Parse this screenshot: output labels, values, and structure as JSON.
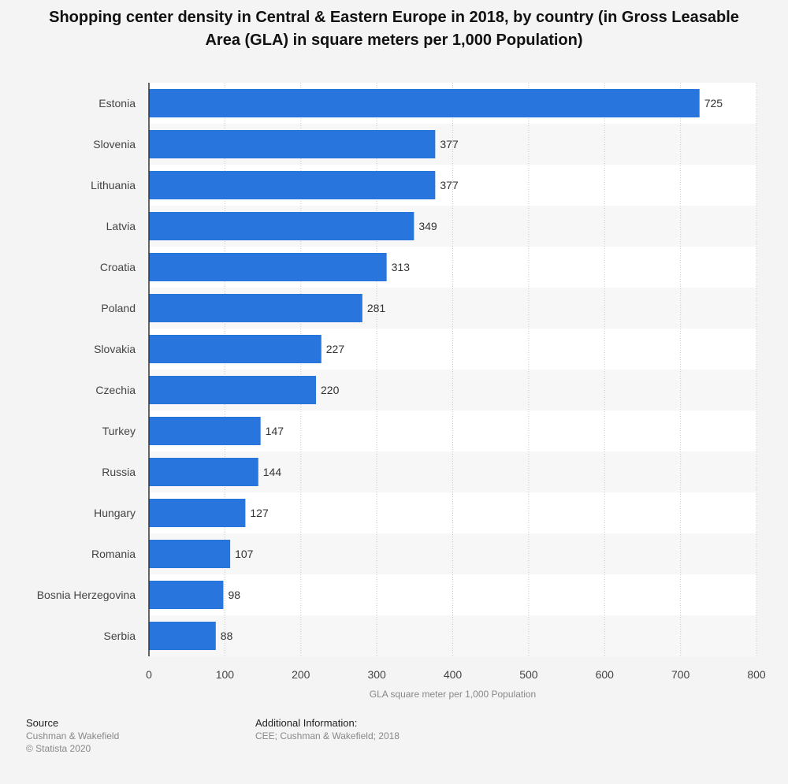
{
  "chart_data": {
    "type": "bar",
    "orientation": "horizontal",
    "title": "Shopping center density in Central & Eastern Europe in 2018, by country (in Gross Leasable Area (GLA) in square meters per 1,000 Population)",
    "xlabel": "GLA square meter per 1,000 Population",
    "ylabel": "",
    "xlim": [
      0,
      800
    ],
    "ticks": [
      0,
      100,
      200,
      300,
      400,
      500,
      600,
      700,
      800
    ],
    "grid": true,
    "bar_color": "#2876dd",
    "categories": [
      "Estonia",
      "Slovenia",
      "Lithuania",
      "Latvia",
      "Croatia",
      "Poland",
      "Slovakia",
      "Czechia",
      "Turkey",
      "Russia",
      "Hungary",
      "Romania",
      "Bosnia Herzegovina",
      "Serbia"
    ],
    "values": [
      725,
      377,
      377,
      349,
      313,
      281,
      227,
      220,
      147,
      144,
      127,
      107,
      98,
      88
    ]
  },
  "footer": {
    "source_heading": "Source",
    "source_text": "Cushman & Wakefield",
    "copyright": "© Statista 2020",
    "additional_heading": "Additional Information:",
    "additional_text": "CEE; Cushman & Wakefield; 2018"
  }
}
